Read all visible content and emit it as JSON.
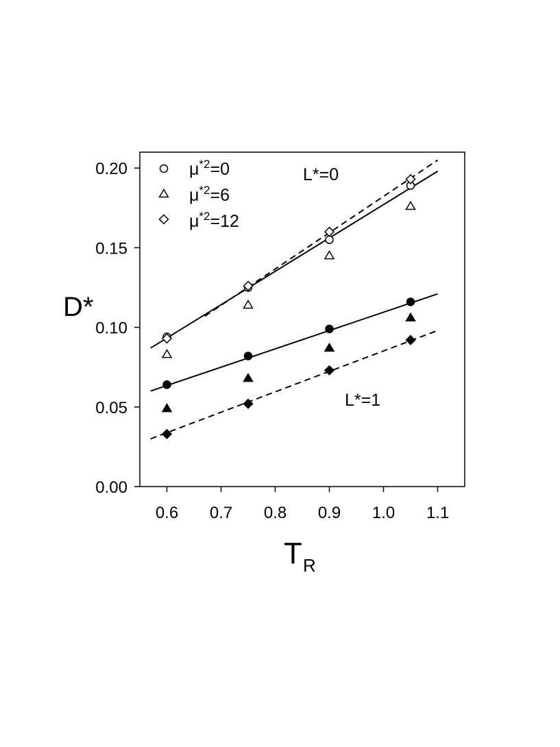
{
  "chart_data": {
    "type": "scatter",
    "xlabel": "T",
    "xlabel_sub": "R",
    "ylabel": "D*",
    "xlim": [
      0.55,
      1.15
    ],
    "ylim": [
      0.0,
      0.21
    ],
    "xticks": [
      "0.6",
      "0.7",
      "0.8",
      "0.9",
      "1.0",
      "1.1"
    ],
    "yticks": [
      "0.00",
      "0.05",
      "0.10",
      "0.15",
      "0.20"
    ],
    "legend": {
      "position": "top-left",
      "entries": [
        {
          "marker": "circle-open",
          "label": "μ*²=0",
          "label_base": "μ",
          "label_sup": "*2",
          "label_tail": "=0"
        },
        {
          "marker": "triangle-open",
          "label": "μ*²=6",
          "label_base": "μ",
          "label_sup": "*2",
          "label_tail": "=6"
        },
        {
          "marker": "diamond-open",
          "label": "μ*²=12",
          "label_base": "μ",
          "label_sup": "*2",
          "label_tail": "=12"
        }
      ]
    },
    "annotations": {
      "l0": "L*=0",
      "l1": "L*=1"
    },
    "series": [
      {
        "group": "L*=0",
        "marker": "circle-open",
        "x": [
          0.6,
          0.75,
          0.9,
          1.05
        ],
        "y": [
          0.094,
          0.125,
          0.155,
          0.189
        ]
      },
      {
        "group": "L*=0",
        "marker": "triangle-open",
        "x": [
          0.6,
          0.75,
          0.9,
          1.05
        ],
        "y": [
          0.083,
          0.114,
          0.145,
          0.176
        ]
      },
      {
        "group": "L*=0",
        "marker": "diamond-open",
        "x": [
          0.6,
          0.75,
          0.9,
          1.05
        ],
        "y": [
          0.093,
          0.126,
          0.16,
          0.193
        ]
      },
      {
        "group": "L*=1",
        "marker": "circle-filled",
        "x": [
          0.6,
          0.75,
          0.9,
          1.05
        ],
        "y": [
          0.064,
          0.082,
          0.099,
          0.116
        ]
      },
      {
        "group": "L*=1",
        "marker": "triangle-filled",
        "x": [
          0.6,
          0.75,
          0.9,
          1.05
        ],
        "y": [
          0.049,
          0.068,
          0.087,
          0.106
        ]
      },
      {
        "group": "L*=1",
        "marker": "diamond-filled",
        "x": [
          0.6,
          0.75,
          0.9,
          1.05
        ],
        "y": [
          0.033,
          0.052,
          0.073,
          0.092
        ]
      }
    ],
    "fit_lines": [
      {
        "style": "solid",
        "x": [
          0.57,
          1.1
        ],
        "y": [
          0.087,
          0.198
        ]
      },
      {
        "style": "dashed",
        "x": [
          0.67,
          1.1
        ],
        "y": [
          0.107,
          0.205
        ]
      },
      {
        "style": "solid",
        "x": [
          0.57,
          1.1
        ],
        "y": [
          0.06,
          0.121
        ]
      },
      {
        "style": "dashed",
        "x": [
          0.57,
          1.1
        ],
        "y": [
          0.03,
          0.098
        ]
      }
    ]
  }
}
